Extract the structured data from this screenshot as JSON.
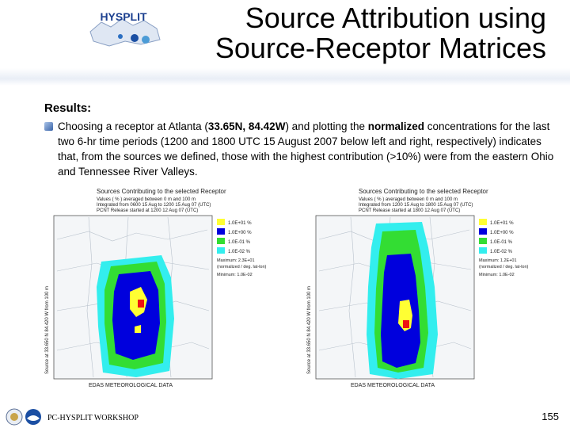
{
  "header": {
    "logo_text": "HYSPLIT",
    "title_line1": "Source Attribution using",
    "title_line2": "Source-Receptor Matrices"
  },
  "body": {
    "results_heading": "Results:",
    "para_part1": "Choosing a receptor at Atlanta (",
    "para_coords": "33.65N, 84.42W",
    "para_part2": ") and plotting the ",
    "para_normalized": "normalized",
    "para_part3": " concentrations for the last two 6-hr time periods (1200 and 1800 UTC 15 August 2007 below left and right, respectively) indicates that, from the sources we defined, those with the highest contribution (>10%) were from the eastern Ohio and Tennessee River Valleys."
  },
  "maps": [
    {
      "title": "Sources Contributing to the selected Receptor",
      "line2": "Values ( % ) averaged between   0 m and   100 m",
      "line3": "Integrated from 0600 15 Aug to 1200 15 Aug 07 (UTC)",
      "line4": "PCNT Release started at 1200 12 Aug 07 (UTC)",
      "legend": [
        "1.0E+01 %",
        "1.0E+00 %",
        "1.0E-01 %",
        "1.0E-02 %"
      ],
      "maximum": "Maximum:  2.3E+01",
      "normalized": "(normalized / deg. lat-lon)",
      "minimum": "Minimum:  1.0E-02",
      "side_label": "Source at 33.650 N   84.420 W   from   100 m",
      "footer": "EDAS METEOROLOGICAL DATA"
    },
    {
      "title": "Sources Contributing to the selected Receptor",
      "line2": "Values ( % ) averaged between   0 m and   100 m",
      "line3": "Integrated from 1200 15 Aug to 1800 15 Aug 07 (UTC)",
      "line4": "PCNT Release started at 1800 12 Aug 07 (UTC)",
      "legend": [
        "1.0E+01 %",
        "1.0E+00 %",
        "1.0E-01 %",
        "1.0E-02 %"
      ],
      "maximum": "Maximum:  1.2E+01",
      "normalized": "(normalized / deg. lat-lon)",
      "minimum": "Minimum:  1.0E-02",
      "side_label": "Source at 33.650 N   84.420 W   from   100 m",
      "footer": "EDAS METEOROLOGICAL DATA"
    }
  ],
  "colors": {
    "level1": "#ffff33",
    "level2": "#0000dd",
    "level3": "#33dd33",
    "level4": "#33eeee",
    "peak": "#ee1111"
  },
  "footer": {
    "label": "PC-HYSPLIT WORKSHOP",
    "page_number": "155"
  }
}
